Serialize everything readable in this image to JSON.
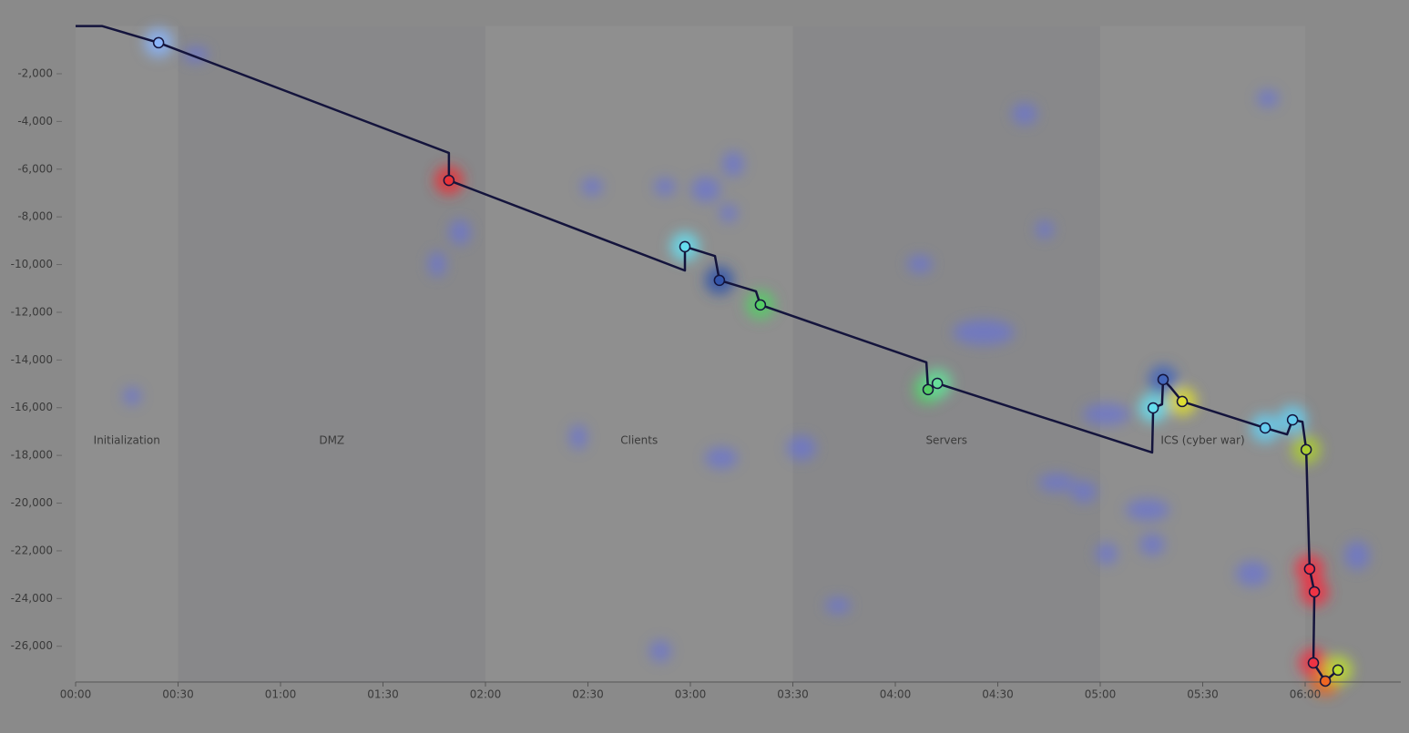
{
  "chart_data": {
    "type": "line",
    "xlim": [
      0,
      388
    ],
    "ylim": [
      -27500,
      0
    ],
    "xticks": [
      {
        "value": 0,
        "label": "00:00"
      },
      {
        "value": 30,
        "label": "00:30"
      },
      {
        "value": 60,
        "label": "01:00"
      },
      {
        "value": 90,
        "label": "01:30"
      },
      {
        "value": 120,
        "label": "02:00"
      },
      {
        "value": 150,
        "label": "02:30"
      },
      {
        "value": 180,
        "label": "03:00"
      },
      {
        "value": 210,
        "label": "03:30"
      },
      {
        "value": 240,
        "label": "04:00"
      },
      {
        "value": 270,
        "label": "04:30"
      },
      {
        "value": 300,
        "label": "05:00"
      },
      {
        "value": 330,
        "label": "05:30"
      },
      {
        "value": 360,
        "label": "06:00"
      }
    ],
    "yticks": [
      {
        "value": -2000,
        "label": "-2,000"
      },
      {
        "value": -4000,
        "label": "-4,000"
      },
      {
        "value": -6000,
        "label": "-6,000"
      },
      {
        "value": -8000,
        "label": "-8,000"
      },
      {
        "value": -10000,
        "label": "-10,000"
      },
      {
        "value": -12000,
        "label": "-12,000"
      },
      {
        "value": -14000,
        "label": "-14,000"
      },
      {
        "value": -16000,
        "label": "-16,000"
      },
      {
        "value": -18000,
        "label": "-18,000"
      },
      {
        "value": -20000,
        "label": "-20,000"
      },
      {
        "value": -22000,
        "label": "-22,000"
      },
      {
        "value": -24000,
        "label": "-24,000"
      },
      {
        "value": -26000,
        "label": "-26,000"
      }
    ],
    "phases": [
      {
        "label": "Initialization",
        "start": 0,
        "end": 30
      },
      {
        "label": "DMZ",
        "start": 30,
        "end": 120
      },
      {
        "label": "Clients",
        "start": 120,
        "end": 210
      },
      {
        "label": "Servers",
        "start": 210,
        "end": 300
      },
      {
        "label": "ICS (cyber war)",
        "start": 300,
        "end": 360
      }
    ],
    "series": [
      {
        "type": "line",
        "color": "#14143c",
        "x": [
          0,
          7.7,
          24.3,
          109.3,
          109.3,
          178.4,
          178.4,
          187.2,
          188.5,
          199.2,
          200.5,
          249.1,
          249.6,
          252.3,
          315.2,
          315.5,
          318.1,
          318.4,
          320.5,
          324,
          348.3,
          354.7,
          356.3,
          359.2,
          360.3,
          361.3,
          362.7,
          362.4,
          365.9,
          369.6
        ],
        "values": [
          0,
          0,
          -700,
          -5320,
          -6470,
          -10250,
          -9250,
          -9640,
          -10660,
          -11120,
          -11690,
          -14100,
          -15240,
          -14980,
          -17880,
          -16010,
          -15860,
          -14820,
          -15130,
          -15740,
          -16850,
          -17120,
          -16510,
          -16590,
          -17760,
          -22760,
          -23720,
          -26700,
          -27460,
          -27000
        ]
      },
      {
        "type": "scatter",
        "x": [
          24.3,
          109.3,
          178.4,
          188.5,
          200.5,
          249.6,
          252.3,
          315.5,
          318.4,
          324,
          348.3,
          356.3,
          360.3,
          361.3,
          362.7,
          362.4,
          365.9,
          369.6
        ],
        "values": [
          -700,
          -6470,
          -9250,
          -10660,
          -11690,
          -15240,
          -14980,
          -16010,
          -14820,
          -15740,
          -16850,
          -16510,
          -17760,
          -22760,
          -23720,
          -26700,
          -27460,
          -27000
        ],
        "colors": [
          "#8ab4f8",
          "#e8333a",
          "#66ddee",
          "#3355aa",
          "#55cc66",
          "#55cc66",
          "#66dd99",
          "#66ddee",
          "#4466bb",
          "#dddd33",
          "#66ccee",
          "#66ccee",
          "#aacc33",
          "#ee3344",
          "#ee3344",
          "#ee3344",
          "#ee6622",
          "#bbdd33"
        ]
      }
    ]
  }
}
